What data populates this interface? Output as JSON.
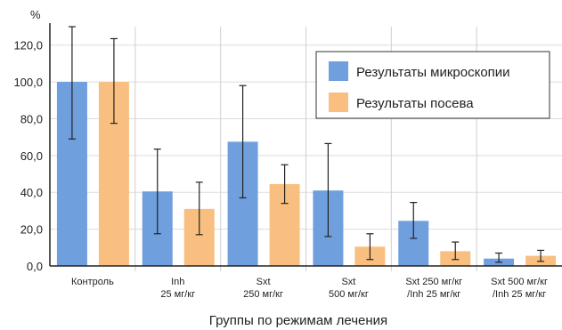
{
  "chart_data": {
    "type": "bar",
    "ylabel": "%",
    "xlabel": "Группы по режимам лечения",
    "ylim": [
      0,
      130
    ],
    "yticks": [
      "0,0",
      "20,0",
      "40,0",
      "60,0",
      "80,0",
      "100,0",
      "120,0"
    ],
    "grid": true,
    "legend_position": "top-right",
    "categories": [
      [
        "Контроль"
      ],
      [
        "Inh",
        "25 мг/кг"
      ],
      [
        "Sxt",
        "250 мг/кг"
      ],
      [
        "Sxt",
        "500 мг/кг"
      ],
      [
        "Sxt 250 мг/кг",
        "/Inh 25 мг/кг"
      ],
      [
        "Sxt 500 мг/кг",
        "/Inh 25 мг/кг"
      ]
    ],
    "series": [
      {
        "name": "Результаты микроскопии",
        "color": "#6f9fdd",
        "values": [
          100,
          40.5,
          67.5,
          41,
          24.5,
          4
        ],
        "err_low": [
          69,
          17.5,
          37,
          16,
          15,
          2
        ],
        "err_high": [
          130,
          63.5,
          98,
          66.5,
          34.5,
          7
        ]
      },
      {
        "name": "Результаты посева",
        "color": "#f9bf80",
        "values": [
          100,
          31,
          44.5,
          10.5,
          8,
          5.5
        ],
        "err_low": [
          77.5,
          17,
          34,
          3.5,
          3.5,
          2.5
        ],
        "err_high": [
          123.5,
          45.5,
          55,
          17.5,
          13,
          8.5
        ]
      }
    ]
  }
}
